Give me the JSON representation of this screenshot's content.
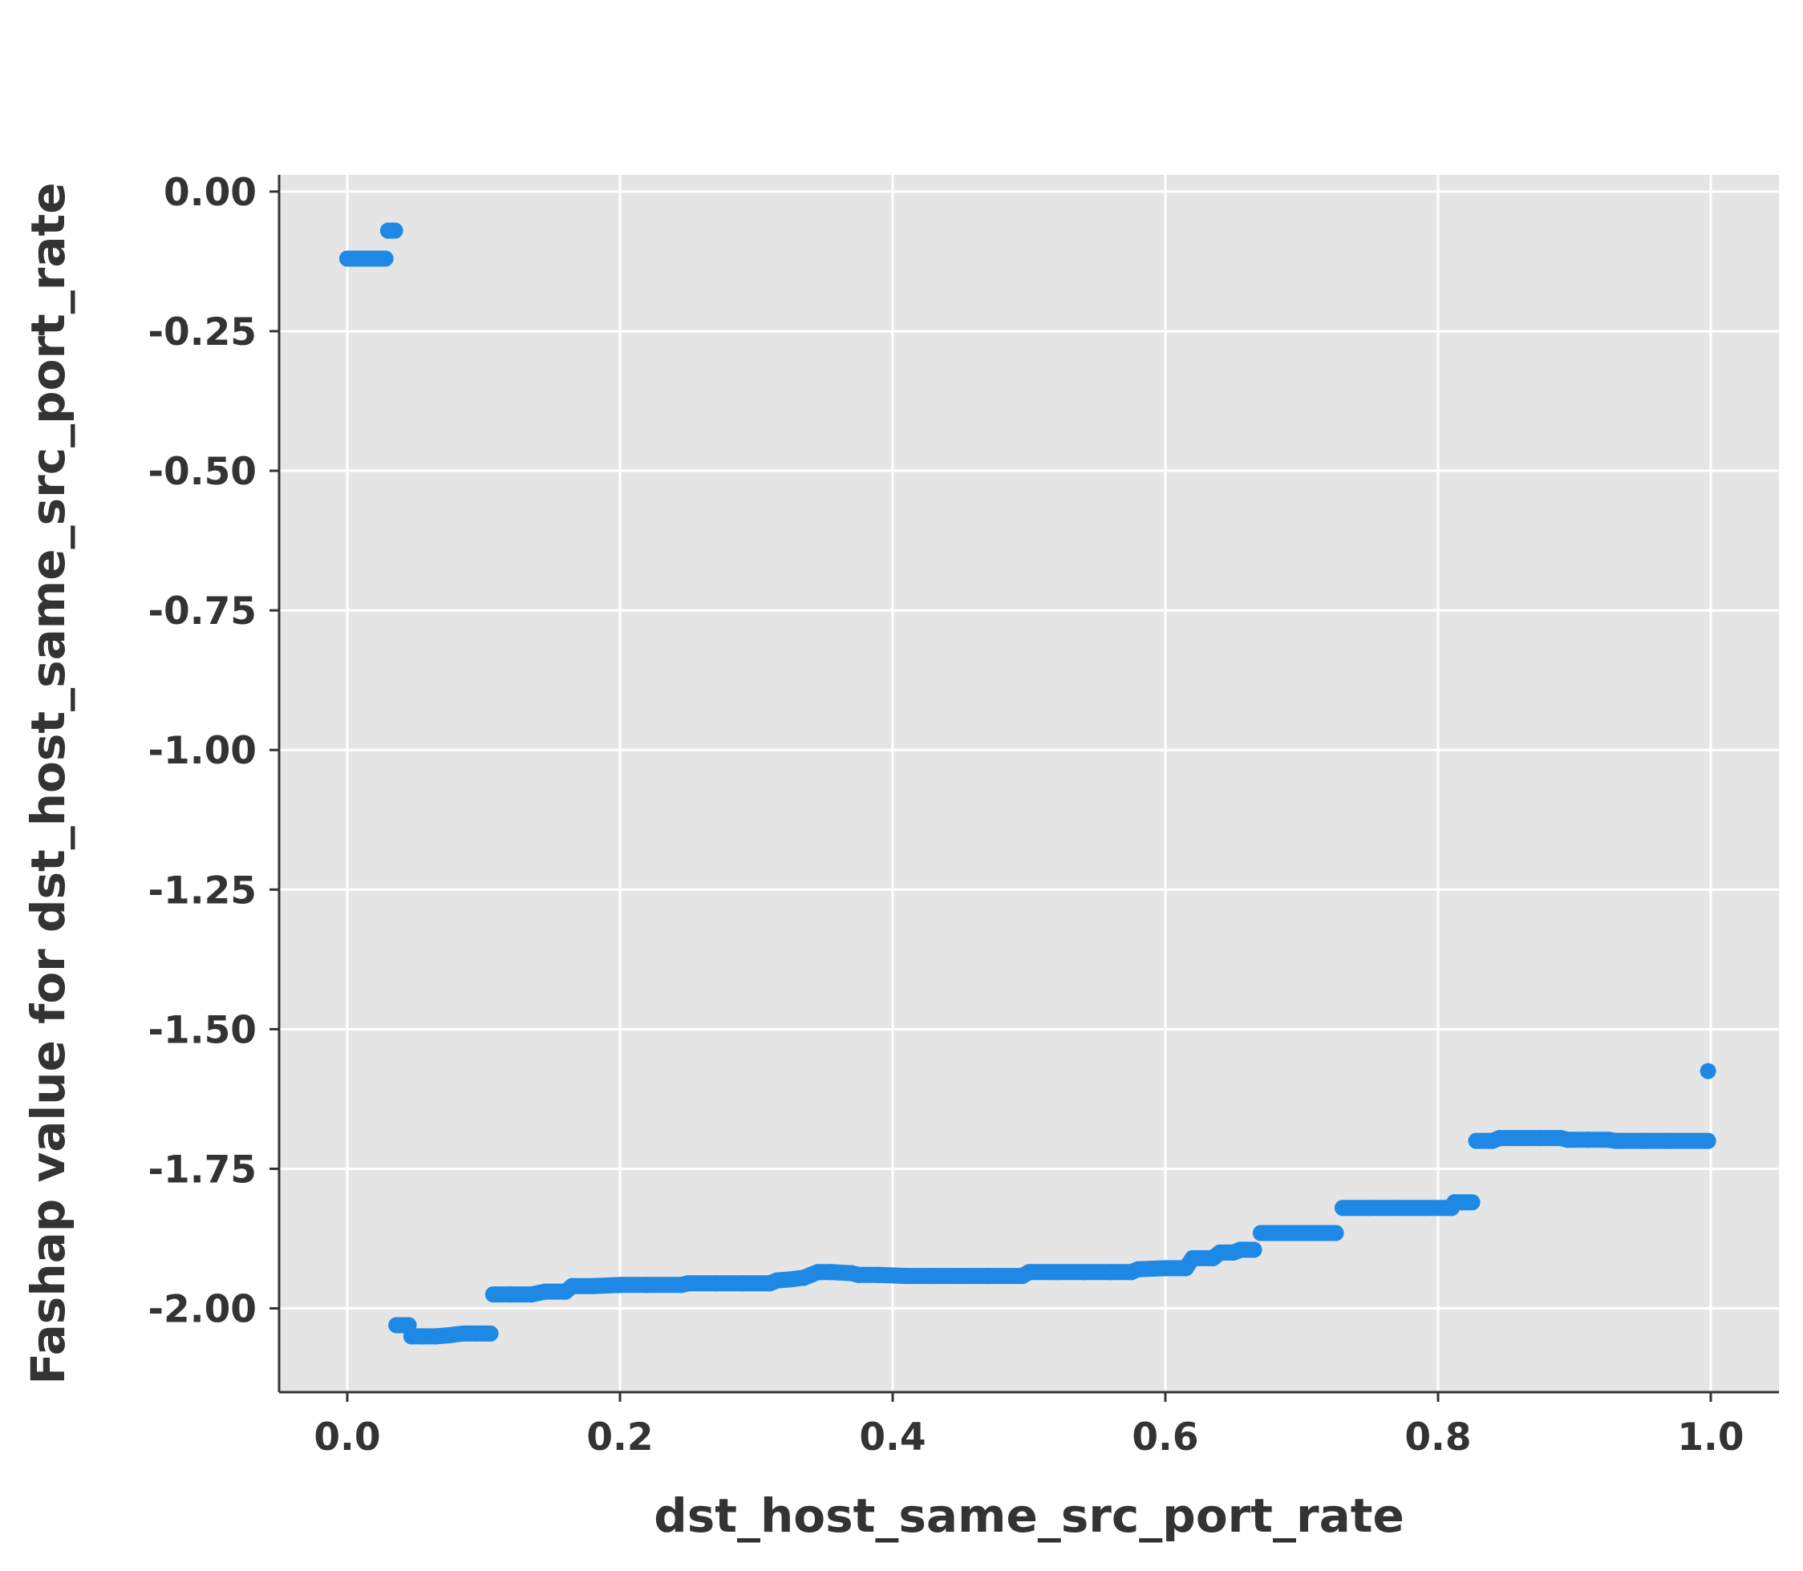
{
  "chart_data": {
    "type": "scatter",
    "xlabel": "dst_host_same_src_port_rate",
    "ylabel": "Fashap value for dst_host_same_src_port_rate",
    "xlim": [
      -0.05,
      1.05
    ],
    "ylim": [
      -2.15,
      0.03
    ],
    "x_ticks": [
      0.0,
      0.2,
      0.4,
      0.6,
      0.8,
      1.0
    ],
    "x_tick_labels": [
      "0.0",
      "0.2",
      "0.4",
      "0.6",
      "0.8",
      "1.0"
    ],
    "y_ticks": [
      0.0,
      -0.25,
      -0.5,
      -0.75,
      -1.0,
      -1.25,
      -1.5,
      -1.75,
      -2.0
    ],
    "y_tick_labels": [
      "0.00",
      "-0.25",
      "-0.50",
      "-0.75",
      "-1.00",
      "-1.25",
      "-1.50",
      "-1.75",
      "-2.00"
    ],
    "grid": true,
    "background": "#e5e5e5",
    "point_color": "#1e88e5",
    "series": [
      {
        "points": [
          [
            0.0,
            -0.12
          ],
          [
            0.01,
            -0.12
          ],
          [
            0.02,
            -0.12
          ],
          [
            0.028,
            -0.12
          ],
          [
            0.03,
            -0.07
          ],
          [
            0.035,
            -0.07
          ],
          [
            0.036,
            -2.03
          ],
          [
            0.045,
            -2.03
          ],
          [
            0.047,
            -2.05
          ],
          [
            0.055,
            -2.05
          ],
          [
            0.065,
            -2.05
          ],
          [
            0.075,
            -2.048
          ],
          [
            0.085,
            -2.045
          ],
          [
            0.095,
            -2.045
          ],
          [
            0.105,
            -2.045
          ],
          [
            0.107,
            -1.975
          ],
          [
            0.12,
            -1.975
          ],
          [
            0.135,
            -1.975
          ],
          [
            0.145,
            -1.97
          ],
          [
            0.16,
            -1.97
          ],
          [
            0.165,
            -1.96
          ],
          [
            0.18,
            -1.96
          ],
          [
            0.2,
            -1.958
          ],
          [
            0.22,
            -1.958
          ],
          [
            0.245,
            -1.958
          ],
          [
            0.25,
            -1.955
          ],
          [
            0.27,
            -1.955
          ],
          [
            0.29,
            -1.955
          ],
          [
            0.31,
            -1.955
          ],
          [
            0.315,
            -1.95
          ],
          [
            0.325,
            -1.948
          ],
          [
            0.335,
            -1.945
          ],
          [
            0.34,
            -1.94
          ],
          [
            0.345,
            -1.935
          ],
          [
            0.355,
            -1.935
          ],
          [
            0.37,
            -1.937
          ],
          [
            0.375,
            -1.94
          ],
          [
            0.39,
            -1.94
          ],
          [
            0.41,
            -1.942
          ],
          [
            0.43,
            -1.942
          ],
          [
            0.45,
            -1.942
          ],
          [
            0.47,
            -1.942
          ],
          [
            0.495,
            -1.942
          ],
          [
            0.5,
            -1.935
          ],
          [
            0.52,
            -1.935
          ],
          [
            0.54,
            -1.935
          ],
          [
            0.56,
            -1.935
          ],
          [
            0.575,
            -1.935
          ],
          [
            0.58,
            -1.93
          ],
          [
            0.6,
            -1.928
          ],
          [
            0.615,
            -1.928
          ],
          [
            0.62,
            -1.91
          ],
          [
            0.635,
            -1.91
          ],
          [
            0.64,
            -1.9
          ],
          [
            0.65,
            -1.9
          ],
          [
            0.655,
            -1.895
          ],
          [
            0.665,
            -1.895
          ],
          [
            0.67,
            -1.865
          ],
          [
            0.685,
            -1.865
          ],
          [
            0.7,
            -1.865
          ],
          [
            0.715,
            -1.865
          ],
          [
            0.725,
            -1.865
          ],
          [
            0.73,
            -1.82
          ],
          [
            0.75,
            -1.82
          ],
          [
            0.77,
            -1.82
          ],
          [
            0.79,
            -1.82
          ],
          [
            0.81,
            -1.82
          ],
          [
            0.812,
            -1.81
          ],
          [
            0.825,
            -1.81
          ],
          [
            0.828,
            -1.7
          ],
          [
            0.84,
            -1.7
          ],
          [
            0.845,
            -1.695
          ],
          [
            0.86,
            -1.695
          ],
          [
            0.875,
            -1.695
          ],
          [
            0.89,
            -1.695
          ],
          [
            0.895,
            -1.698
          ],
          [
            0.91,
            -1.698
          ],
          [
            0.925,
            -1.698
          ],
          [
            0.93,
            -1.7
          ],
          [
            0.95,
            -1.7
          ],
          [
            0.97,
            -1.7
          ],
          [
            0.998,
            -1.7
          ],
          [
            0.998,
            -1.575
          ]
        ]
      }
    ]
  }
}
